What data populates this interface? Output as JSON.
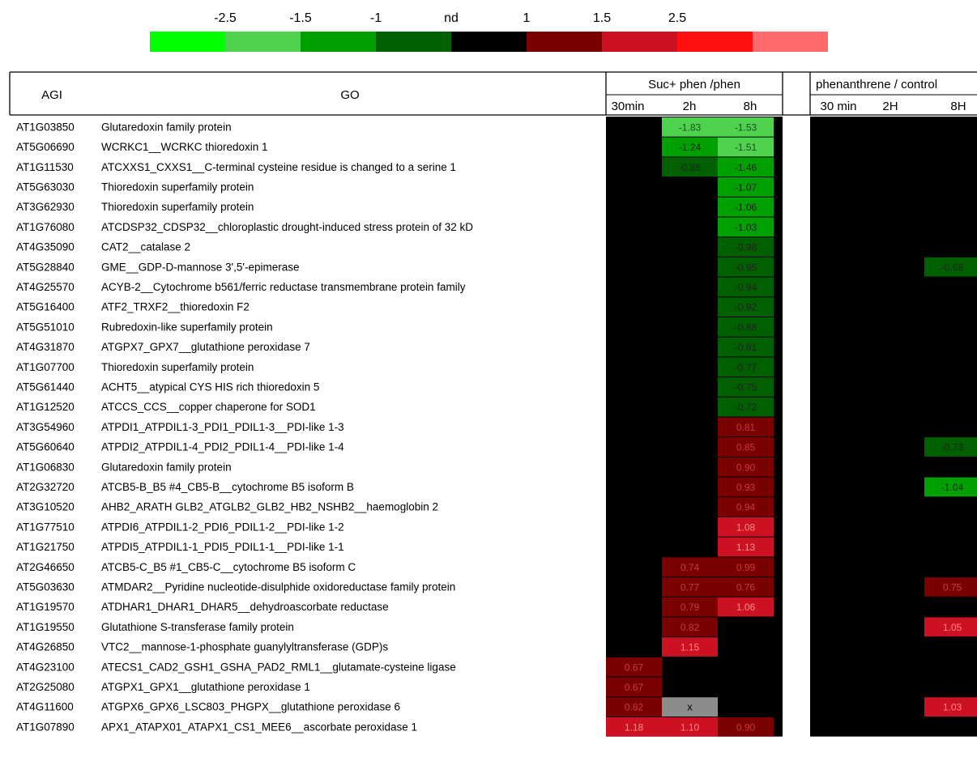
{
  "legend": {
    "labels": [
      "-2.5",
      "-1.5",
      "-1",
      "nd",
      "1",
      "1.5",
      "2.5"
    ],
    "colors": [
      "#00ff00",
      "#4fd34f",
      "#00a000",
      "#006000",
      "#000000",
      "#7a0000",
      "#cc1122",
      "#ff1111",
      "#ff6a6a"
    ]
  },
  "chart_data": {
    "type": "heatmap",
    "columns_header": {
      "agi": "AGI",
      "go": "GO"
    },
    "groups": [
      {
        "title": "Suc+ phen /phen",
        "columns": [
          "30min",
          "2h",
          "8h"
        ]
      },
      {
        "title": "phenanthrene / control",
        "columns": [
          "30 min",
          "2H",
          "8H"
        ]
      }
    ],
    "rows": [
      {
        "agi": "AT1G03850",
        "go": "Glutaredoxin family protein",
        "values": [
          null,
          -1.83,
          -1.53,
          null,
          null,
          null
        ]
      },
      {
        "agi": "AT5G06690",
        "go": "WCRKC1__WCRKC thioredoxin 1",
        "values": [
          null,
          -1.24,
          -1.51,
          null,
          null,
          null
        ]
      },
      {
        "agi": "AT1G11530",
        "go": "ATCXXS1_CXXS1__C-terminal cysteine residue is changed to a serine 1",
        "values": [
          null,
          -0.86,
          -1.46,
          null,
          null,
          null
        ]
      },
      {
        "agi": "AT5G63030",
        "go": "Thioredoxin superfamily protein",
        "values": [
          null,
          null,
          -1.07,
          null,
          null,
          null
        ]
      },
      {
        "agi": "AT3G62930",
        "go": "Thioredoxin superfamily protein",
        "values": [
          null,
          null,
          -1.06,
          null,
          null,
          null
        ]
      },
      {
        "agi": "AT1G76080",
        "go": "ATCDSP32_CDSP32__chloroplastic drought-induced stress protein of 32 kD",
        "values": [
          null,
          null,
          -1.03,
          null,
          null,
          null
        ]
      },
      {
        "agi": "AT4G35090",
        "go": "CAT2__catalase 2",
        "values": [
          null,
          null,
          -0.98,
          null,
          null,
          null
        ]
      },
      {
        "agi": "AT5G28840",
        "go": "GME__GDP-D-mannose 3',5'-epimerase",
        "values": [
          null,
          null,
          -0.95,
          null,
          null,
          -0.68
        ]
      },
      {
        "agi": "AT4G25570",
        "go": "ACYB-2__Cytochrome b561/ferric reductase transmembrane protein family",
        "values": [
          null,
          null,
          -0.94,
          null,
          null,
          null
        ]
      },
      {
        "agi": "AT5G16400",
        "go": "ATF2_TRXF2__thioredoxin F2",
        "values": [
          null,
          null,
          -0.92,
          null,
          null,
          null
        ]
      },
      {
        "agi": "AT5G51010",
        "go": "Rubredoxin-like superfamily protein",
        "values": [
          null,
          null,
          -0.88,
          null,
          null,
          null
        ]
      },
      {
        "agi": "AT4G31870",
        "go": "ATGPX7_GPX7__glutathione peroxidase 7",
        "values": [
          null,
          null,
          -0.81,
          null,
          null,
          null
        ]
      },
      {
        "agi": "AT1G07700",
        "go": "Thioredoxin superfamily protein",
        "values": [
          null,
          null,
          -0.77,
          null,
          null,
          null
        ]
      },
      {
        "agi": "AT5G61440",
        "go": "ACHT5__atypical CYS  HIS rich thioredoxin 5",
        "values": [
          null,
          null,
          -0.75,
          null,
          null,
          null
        ]
      },
      {
        "agi": "AT1G12520",
        "go": "ATCCS_CCS__copper chaperone for SOD1",
        "values": [
          null,
          null,
          -0.72,
          null,
          null,
          null
        ]
      },
      {
        "agi": "AT3G54960",
        "go": "ATPDI1_ATPDIL1-3_PDI1_PDIL1-3__PDI-like 1-3",
        "values": [
          null,
          null,
          0.81,
          null,
          null,
          null
        ]
      },
      {
        "agi": "AT5G60640",
        "go": "ATPDI2_ATPDIL1-4_PDI2_PDIL1-4__PDI-like 1-4",
        "values": [
          null,
          null,
          0.85,
          null,
          null,
          -0.73
        ]
      },
      {
        "agi": "AT1G06830",
        "go": "Glutaredoxin family protein",
        "values": [
          null,
          null,
          0.9,
          null,
          null,
          null
        ]
      },
      {
        "agi": "AT2G32720",
        "go": "ATCB5-B_B5 #4_CB5-B__cytochrome B5 isoform B",
        "values": [
          null,
          null,
          0.93,
          null,
          null,
          -1.04
        ]
      },
      {
        "agi": "AT3G10520",
        "go": "AHB2_ARATH GLB2_ATGLB2_GLB2_HB2_NSHB2__haemoglobin 2",
        "values": [
          null,
          null,
          0.94,
          null,
          null,
          null
        ]
      },
      {
        "agi": "AT1G77510",
        "go": "ATPDI6_ATPDIL1-2_PDI6_PDIL1-2__PDI-like 1-2",
        "values": [
          null,
          null,
          1.08,
          null,
          null,
          null
        ]
      },
      {
        "agi": "AT1G21750",
        "go": "ATPDI5_ATPDIL1-1_PDI5_PDIL1-1__PDI-like 1-1",
        "values": [
          null,
          null,
          1.13,
          null,
          null,
          null
        ]
      },
      {
        "agi": "AT2G46650",
        "go": "ATCB5-C_B5 #1_CB5-C__cytochrome B5 isoform C",
        "values": [
          null,
          0.74,
          0.99,
          null,
          null,
          null
        ]
      },
      {
        "agi": "AT5G03630",
        "go": "ATMDAR2__Pyridine nucleotide-disulphide oxidoreductase family protein",
        "values": [
          null,
          0.77,
          0.76,
          null,
          null,
          0.75
        ]
      },
      {
        "agi": "AT1G19570",
        "go": "ATDHAR1_DHAR1_DHAR5__dehydroascorbate reductase",
        "values": [
          null,
          0.79,
          1.06,
          null,
          null,
          null
        ]
      },
      {
        "agi": "AT1G19550",
        "go": "Glutathione S-transferase family protein",
        "values": [
          null,
          0.82,
          null,
          null,
          null,
          1.05
        ]
      },
      {
        "agi": "AT4G26850",
        "go": "VTC2__mannose-1-phosphate guanylyltransferase (GDP)s",
        "values": [
          null,
          1.15,
          null,
          null,
          null,
          null
        ]
      },
      {
        "agi": "AT4G23100",
        "go": "ATECS1_CAD2_GSH1_GSHA_PAD2_RML1__glutamate-cysteine ligase",
        "values": [
          0.67,
          null,
          null,
          null,
          null,
          null
        ]
      },
      {
        "agi": "AT2G25080",
        "go": "ATGPX1_GPX1__glutathione peroxidase 1",
        "values": [
          0.67,
          null,
          null,
          null,
          null,
          null
        ]
      },
      {
        "agi": "AT4G11600",
        "go": "ATGPX6_GPX6_LSC803_PHGPX__glutathione peroxidase 6",
        "values": [
          0.82,
          "x",
          null,
          null,
          null,
          1.03
        ]
      },
      {
        "agi": "AT1G07890",
        "go": "APX1_ATAPX01_ATAPX1_CS1_MEE6__ascorbate peroxidase 1",
        "values": [
          1.18,
          1.1,
          0.9,
          null,
          null,
          null
        ]
      }
    ],
    "colors": {
      "nd": "#000000",
      "missing": "#8c8c8c",
      "neg_strong": "#4fd34f",
      "neg_mid": "#00a000",
      "neg_weak": "#006000",
      "pos_weak": "#7a0000",
      "pos_mid": "#cc1122",
      "pos_strong": "#ff1111"
    }
  }
}
